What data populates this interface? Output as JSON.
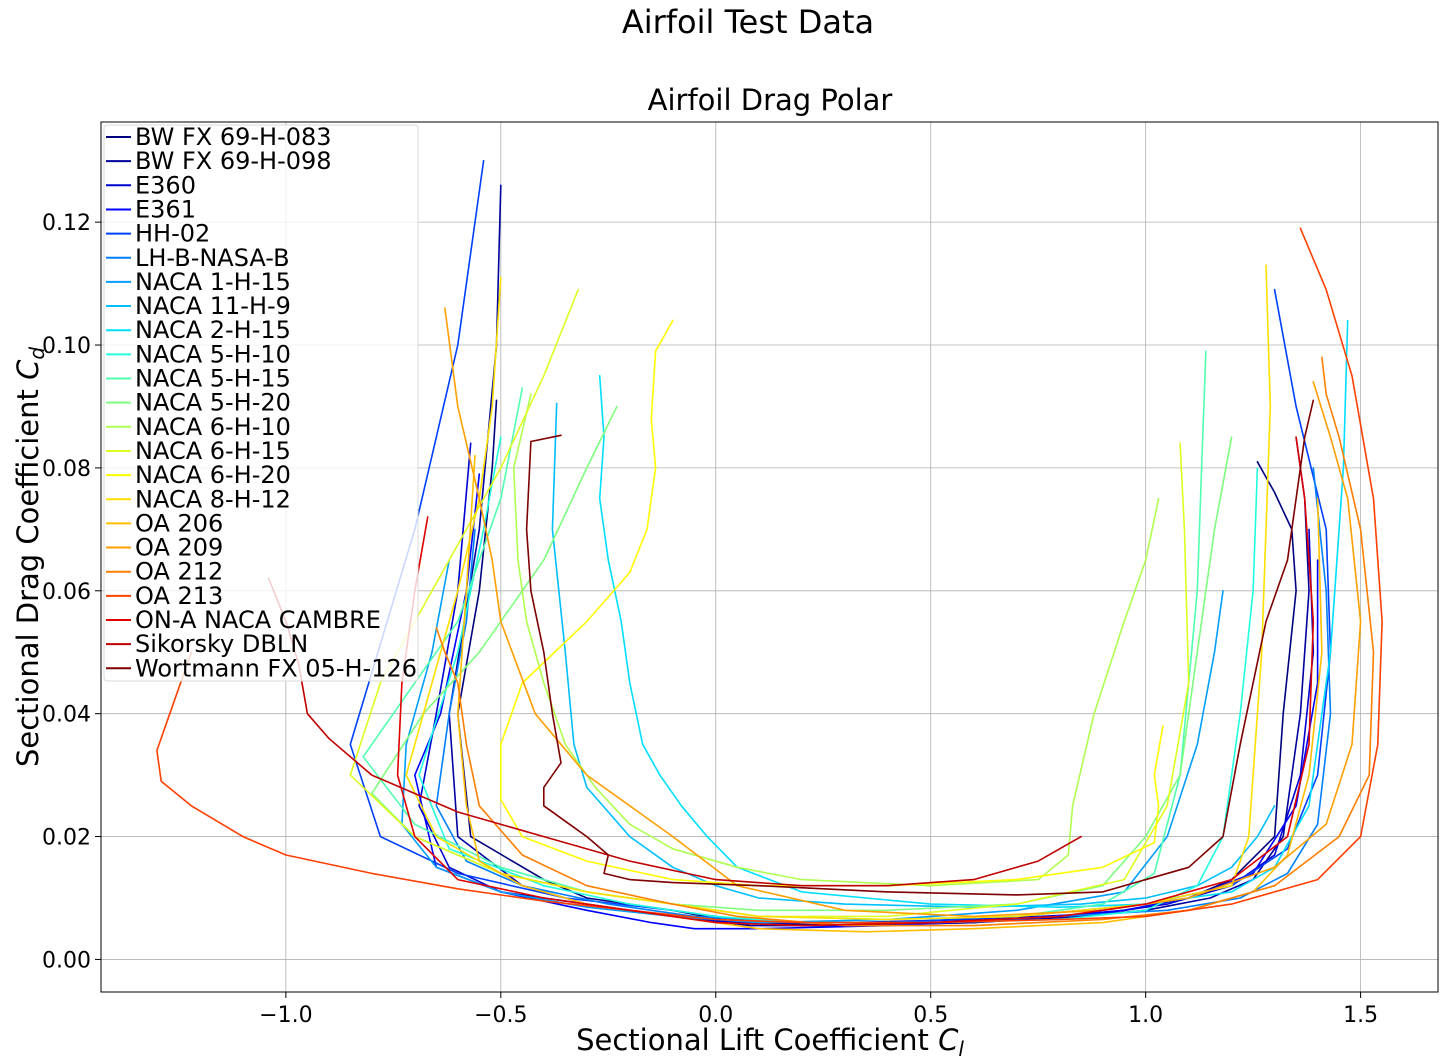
{
  "chart_data": {
    "type": "line",
    "suptitle": "Airfoil Test Data",
    "title": "Airfoil Drag Polar",
    "xlabel": "Sectional Lift Coefficient",
    "xlabel_sym": "C",
    "xlabel_sub": "l",
    "ylabel": "Sectional Drag Coefficient",
    "ylabel_sym": "C",
    "ylabel_sub": "d",
    "xlim": [
      -1.43,
      1.68
    ],
    "ylim": [
      -0.0053,
      0.1363
    ],
    "xticks": [
      -1.0,
      -0.5,
      0.0,
      0.5,
      1.0,
      1.5
    ],
    "xtick_labels": [
      "−1.0",
      "−0.5",
      "0.0",
      "0.5",
      "1.0",
      "1.5"
    ],
    "yticks": [
      0.0,
      0.02,
      0.04,
      0.06,
      0.08,
      0.1,
      0.12
    ],
    "ytick_labels": [
      "0.00",
      "0.02",
      "0.04",
      "0.06",
      "0.08",
      "0.10",
      "0.12"
    ],
    "grid": true,
    "legend_position": "upper-left",
    "series": [
      {
        "name": "BW FX 69-H-083",
        "color": "#00007f",
        "x": [
          -0.51,
          -0.52,
          -0.55,
          -0.6,
          -0.57,
          -0.4,
          -0.3,
          -0.1,
          0.05,
          0.3,
          0.6,
          0.8,
          0.95,
          1.1,
          1.2,
          1.3,
          1.32,
          1.35,
          1.34,
          1.3,
          1.26
        ],
        "y": [
          0.091,
          0.08,
          0.06,
          0.04,
          0.02,
          0.013,
          0.01,
          0.008,
          0.006,
          0.0055,
          0.006,
          0.007,
          0.008,
          0.01,
          0.013,
          0.02,
          0.04,
          0.06,
          0.07,
          0.076,
          0.081
        ]
      },
      {
        "name": "BW FX 69-H-098",
        "color": "#00009f",
        "x": [
          -0.5,
          -0.51,
          -0.55,
          -0.62,
          -0.6,
          -0.45,
          -0.3,
          -0.1,
          0.08,
          0.3,
          0.6,
          0.85,
          1.0,
          1.15,
          1.25,
          1.32,
          1.36,
          1.38,
          1.37,
          1.35
        ],
        "y": [
          0.126,
          0.1,
          0.07,
          0.04,
          0.02,
          0.012,
          0.009,
          0.007,
          0.0055,
          0.0055,
          0.006,
          0.007,
          0.008,
          0.01,
          0.013,
          0.02,
          0.04,
          0.06,
          0.075,
          0.085
        ]
      },
      {
        "name": "E360",
        "color": "#0000d0",
        "x": [
          -0.57,
          -0.6,
          -0.65,
          -0.69,
          -0.62,
          -0.5,
          -0.3,
          -0.1,
          0.05,
          0.3,
          0.6,
          0.9,
          1.05,
          1.2,
          1.3,
          1.36,
          1.39,
          1.38
        ],
        "y": [
          0.084,
          0.06,
          0.04,
          0.025,
          0.015,
          0.011,
          0.009,
          0.007,
          0.006,
          0.006,
          0.0065,
          0.0075,
          0.009,
          0.012,
          0.017,
          0.03,
          0.05,
          0.07
        ]
      },
      {
        "name": "E361",
        "color": "#0000ff",
        "x": [
          -0.55,
          -0.58,
          -0.64,
          -0.7,
          -0.65,
          -0.5,
          -0.3,
          -0.15,
          -0.05,
          0.1,
          0.4,
          0.7,
          0.95,
          1.1,
          1.25,
          1.35,
          1.4,
          1.4
        ],
        "y": [
          0.079,
          0.06,
          0.04,
          0.03,
          0.015,
          0.011,
          0.008,
          0.006,
          0.005,
          0.005,
          0.0055,
          0.0065,
          0.008,
          0.01,
          0.014,
          0.025,
          0.045,
          0.065
        ]
      },
      {
        "name": "HH-02",
        "color": "#0040ff",
        "x": [
          -0.54,
          -0.6,
          -0.7,
          -0.85,
          -0.78,
          -0.6,
          -0.35,
          -0.1,
          0.1,
          0.4,
          0.7,
          1.0,
          1.2,
          1.33,
          1.4,
          1.43,
          1.42,
          1.35,
          1.3
        ],
        "y": [
          0.13,
          0.1,
          0.07,
          0.035,
          0.02,
          0.014,
          0.01,
          0.008,
          0.006,
          0.006,
          0.007,
          0.009,
          0.012,
          0.018,
          0.03,
          0.05,
          0.07,
          0.09,
          0.109
        ]
      },
      {
        "name": "LH-B-NASA-B",
        "color": "#007fff",
        "x": [
          -0.56,
          -0.58,
          -0.62,
          -0.65,
          -0.58,
          -0.45,
          -0.25,
          -0.05,
          0.2,
          0.5,
          0.8,
          1.05,
          1.22,
          1.33,
          1.4,
          1.43,
          1.42,
          1.39
        ],
        "y": [
          0.07,
          0.055,
          0.04,
          0.025,
          0.016,
          0.012,
          0.009,
          0.007,
          0.006,
          0.006,
          0.007,
          0.008,
          0.01,
          0.014,
          0.022,
          0.04,
          0.06,
          0.08
        ]
      },
      {
        "name": "NACA 1-H-15",
        "color": "#009fff",
        "x": [
          -0.62,
          -0.66,
          -0.72,
          -0.73,
          -0.65,
          -0.5,
          -0.3,
          -0.1,
          0.1,
          0.4,
          0.7,
          0.95,
          1.05,
          1.12,
          1.16,
          1.18
        ],
        "y": [
          0.065,
          0.05,
          0.035,
          0.022,
          0.015,
          0.011,
          0.0085,
          0.007,
          0.006,
          0.0065,
          0.008,
          0.011,
          0.02,
          0.035,
          0.05,
          0.06
        ]
      },
      {
        "name": "NACA 11-H-9",
        "color": "#00bfff",
        "x": [
          -0.37,
          -0.38,
          -0.35,
          -0.33,
          -0.3,
          -0.2,
          -0.1,
          0.0,
          0.1,
          0.3,
          0.6,
          0.85,
          1.0,
          1.12,
          1.2,
          1.26,
          1.3
        ],
        "y": [
          0.0905,
          0.07,
          0.05,
          0.035,
          0.028,
          0.02,
          0.015,
          0.012,
          0.01,
          0.009,
          0.0085,
          0.009,
          0.01,
          0.012,
          0.015,
          0.02,
          0.025
        ]
      },
      {
        "name": "NACA 2-H-15",
        "color": "#00dfff",
        "x": [
          -0.27,
          -0.26,
          -0.27,
          -0.25,
          -0.22,
          -0.2,
          -0.17,
          -0.13,
          -0.08,
          -0.02,
          0.05,
          0.2,
          0.5,
          0.8,
          1.0,
          1.2,
          1.3,
          1.38,
          1.43,
          1.46,
          1.47
        ],
        "y": [
          0.095,
          0.085,
          0.075,
          0.065,
          0.055,
          0.045,
          0.035,
          0.03,
          0.025,
          0.02,
          0.015,
          0.011,
          0.009,
          0.0085,
          0.009,
          0.011,
          0.015,
          0.025,
          0.05,
          0.08,
          0.104
        ]
      },
      {
        "name": "NACA 5-H-10",
        "color": "#20ffdf",
        "x": [
          -0.5,
          -0.54,
          -0.6,
          -0.69,
          -0.62,
          -0.4,
          -0.2,
          0.0,
          0.2,
          0.5,
          0.8,
          1.0,
          1.12,
          1.18,
          1.22,
          1.25,
          1.26
        ],
        "y": [
          0.085,
          0.07,
          0.05,
          0.03,
          0.018,
          0.012,
          0.009,
          0.007,
          0.006,
          0.006,
          0.0065,
          0.008,
          0.012,
          0.02,
          0.04,
          0.06,
          0.08
        ]
      },
      {
        "name": "NACA 5-H-15",
        "color": "#50ffaf",
        "x": [
          -0.45,
          -0.5,
          -0.6,
          -0.75,
          -0.82,
          -0.7,
          -0.5,
          -0.3,
          -0.1,
          0.1,
          0.4,
          0.7,
          0.9,
          1.02,
          1.08,
          1.12,
          1.13,
          1.14
        ],
        "y": [
          0.093,
          0.075,
          0.055,
          0.04,
          0.033,
          0.022,
          0.015,
          0.011,
          0.009,
          0.007,
          0.0065,
          0.007,
          0.009,
          0.014,
          0.03,
          0.06,
          0.08,
          0.099
        ]
      },
      {
        "name": "NACA 5-H-20",
        "color": "#7fff7f",
        "x": [
          -0.23,
          -0.3,
          -0.4,
          -0.55,
          -0.68,
          -0.8,
          -0.7,
          -0.5,
          -0.3,
          -0.1,
          0.1,
          0.4,
          0.7,
          0.9,
          1.0,
          1.08,
          1.12,
          1.16,
          1.2
        ],
        "y": [
          0.09,
          0.08,
          0.065,
          0.05,
          0.04,
          0.027,
          0.02,
          0.014,
          0.011,
          0.009,
          0.008,
          0.008,
          0.009,
          0.012,
          0.02,
          0.03,
          0.05,
          0.07,
          0.085
        ]
      },
      {
        "name": "NACA 6-H-10",
        "color": "#afff50",
        "x": [
          -0.43,
          -0.47,
          -0.46,
          -0.44,
          -0.4,
          -0.35,
          -0.28,
          -0.2,
          -0.1,
          0.05,
          0.2,
          0.5,
          0.75,
          0.82,
          0.83,
          0.88,
          0.95,
          1.0,
          1.03
        ],
        "y": [
          0.092,
          0.08,
          0.065,
          0.055,
          0.045,
          0.035,
          0.028,
          0.022,
          0.018,
          0.015,
          0.013,
          0.012,
          0.013,
          0.017,
          0.025,
          0.04,
          0.055,
          0.065,
          0.075
        ]
      },
      {
        "name": "NACA 6-H-15",
        "color": "#dfff20",
        "x": [
          -0.32,
          -0.4,
          -0.5,
          -0.62,
          -0.78,
          -0.85,
          -0.7,
          -0.5,
          -0.3,
          -0.1,
          0.1,
          0.4,
          0.7,
          0.95,
          1.05,
          1.1,
          1.09,
          1.08
        ],
        "y": [
          0.109,
          0.095,
          0.08,
          0.065,
          0.045,
          0.03,
          0.02,
          0.014,
          0.011,
          0.009,
          0.007,
          0.007,
          0.009,
          0.013,
          0.025,
          0.045,
          0.07,
          0.084
        ]
      },
      {
        "name": "NACA 6-H-20",
        "color": "#ffff00",
        "x": [
          -0.1,
          -0.14,
          -0.15,
          -0.14,
          -0.16,
          -0.2,
          -0.3,
          -0.45,
          -0.5,
          -0.5,
          -0.45,
          -0.3,
          -0.1,
          0.1,
          0.4,
          0.7,
          0.9,
          1.02,
          1.03,
          1.02,
          1.04
        ],
        "y": [
          0.104,
          0.099,
          0.088,
          0.08,
          0.07,
          0.063,
          0.055,
          0.045,
          0.035,
          0.026,
          0.02,
          0.016,
          0.013,
          0.012,
          0.012,
          0.013,
          0.015,
          0.019,
          0.025,
          0.03,
          0.038
        ]
      },
      {
        "name": "NACA 8-H-12",
        "color": "#ffdf00",
        "x": [
          -0.5,
          -0.52,
          -0.55,
          -0.6,
          -0.66,
          -0.72,
          -0.65,
          -0.5,
          -0.3,
          -0.1,
          0.1,
          0.4,
          0.7,
          1.0,
          1.2,
          1.24,
          1.27,
          1.29,
          1.28
        ],
        "y": [
          0.111,
          0.09,
          0.075,
          0.06,
          0.045,
          0.03,
          0.02,
          0.014,
          0.011,
          0.009,
          0.007,
          0.0065,
          0.007,
          0.009,
          0.012,
          0.02,
          0.05,
          0.09,
          0.113
        ]
      },
      {
        "name": "OA 206",
        "color": "#ffbf00",
        "x": [
          -0.56,
          -0.58,
          -0.6,
          -0.58,
          -0.55,
          -0.45,
          -0.3,
          -0.1,
          0.1,
          0.35,
          0.6,
          0.9,
          1.1,
          1.25,
          1.33,
          1.38,
          1.41,
          1.4
        ],
        "y": [
          0.082,
          0.06,
          0.04,
          0.025,
          0.016,
          0.012,
          0.009,
          0.007,
          0.005,
          0.0045,
          0.005,
          0.006,
          0.008,
          0.011,
          0.017,
          0.03,
          0.05,
          0.075
        ]
      },
      {
        "name": "OA 209",
        "color": "#ff9f00",
        "x": [
          -0.63,
          -0.6,
          -0.55,
          -0.52,
          -0.5,
          -0.42,
          -0.3,
          -0.1,
          0.05,
          0.3,
          0.6,
          0.9,
          1.1,
          1.3,
          1.42,
          1.48,
          1.5,
          1.47,
          1.43,
          1.39
        ],
        "y": [
          0.106,
          0.09,
          0.075,
          0.065,
          0.055,
          0.04,
          0.03,
          0.02,
          0.012,
          0.008,
          0.007,
          0.008,
          0.01,
          0.015,
          0.022,
          0.035,
          0.055,
          0.075,
          0.085,
          0.094
        ]
      },
      {
        "name": "OA 212",
        "color": "#ff7f00",
        "x": [
          -0.65,
          -0.63,
          -0.6,
          -0.58,
          -0.55,
          -0.45,
          -0.3,
          -0.1,
          0.05,
          0.3,
          0.6,
          0.9,
          1.1,
          1.3,
          1.45,
          1.52,
          1.53,
          1.5,
          1.45,
          1.42,
          1.41
        ],
        "y": [
          0.054,
          0.05,
          0.045,
          0.035,
          0.025,
          0.017,
          0.012,
          0.009,
          0.007,
          0.0055,
          0.0055,
          0.0065,
          0.008,
          0.012,
          0.02,
          0.03,
          0.05,
          0.07,
          0.085,
          0.092,
          0.098
        ]
      },
      {
        "name": "OA 213",
        "color": "#ff4000",
        "x": [
          -1.22,
          -1.27,
          -1.3,
          -1.29,
          -1.22,
          -1.1,
          -1.0,
          -0.8,
          -0.6,
          -0.4,
          -0.2,
          0.0,
          0.2,
          0.5,
          0.8,
          1.0,
          1.2,
          1.4,
          1.5,
          1.54,
          1.55,
          1.53,
          1.48,
          1.42,
          1.36
        ],
        "y": [
          0.05,
          0.04,
          0.034,
          0.029,
          0.025,
          0.02,
          0.017,
          0.014,
          0.0115,
          0.0095,
          0.008,
          0.0065,
          0.006,
          0.006,
          0.0065,
          0.007,
          0.009,
          0.013,
          0.02,
          0.035,
          0.055,
          0.075,
          0.095,
          0.109,
          0.119
        ]
      },
      {
        "name": "ON-A NACA CAMBRE",
        "color": "#df0000",
        "x": [
          -0.67,
          -0.7,
          -0.73,
          -0.74,
          -0.7,
          -0.6,
          -0.4,
          -0.2,
          0.0,
          0.2,
          0.5,
          0.8,
          1.0,
          1.2,
          1.33,
          1.38,
          1.39,
          1.37,
          1.35
        ],
        "y": [
          0.072,
          0.06,
          0.045,
          0.03,
          0.02,
          0.013,
          0.01,
          0.008,
          0.006,
          0.0055,
          0.006,
          0.007,
          0.009,
          0.013,
          0.02,
          0.035,
          0.055,
          0.075,
          0.085
        ]
      },
      {
        "name": "Sikorsky DBLN",
        "color": "#bf0000",
        "x": [
          -1.04,
          -1.0,
          -0.97,
          -0.95,
          -0.9,
          -0.8,
          -0.6,
          -0.4,
          -0.2,
          0.0,
          0.2,
          0.4,
          0.6,
          0.75,
          0.85
        ],
        "y": [
          0.062,
          0.055,
          0.048,
          0.04,
          0.036,
          0.03,
          0.024,
          0.02,
          0.016,
          0.013,
          0.012,
          0.012,
          0.013,
          0.016,
          0.02
        ]
      },
      {
        "name": "Wortmann FX 05-H-126",
        "color": "#7f0000",
        "x": [
          -0.36,
          -0.43,
          -0.44,
          -0.43,
          -0.4,
          -0.38,
          -0.36,
          -0.4,
          -0.4,
          -0.34,
          -0.3,
          -0.25,
          -0.26,
          -0.2,
          -0.1,
          0.1,
          0.4,
          0.7,
          0.9,
          1.1,
          1.18,
          1.22,
          1.28,
          1.33,
          1.35,
          1.37,
          1.39
        ],
        "y": [
          0.0853,
          0.0843,
          0.07,
          0.06,
          0.05,
          0.04,
          0.032,
          0.028,
          0.025,
          0.022,
          0.02,
          0.017,
          0.014,
          0.013,
          0.0125,
          0.012,
          0.011,
          0.0105,
          0.011,
          0.015,
          0.02,
          0.035,
          0.055,
          0.065,
          0.075,
          0.085,
          0.091
        ]
      }
    ]
  }
}
